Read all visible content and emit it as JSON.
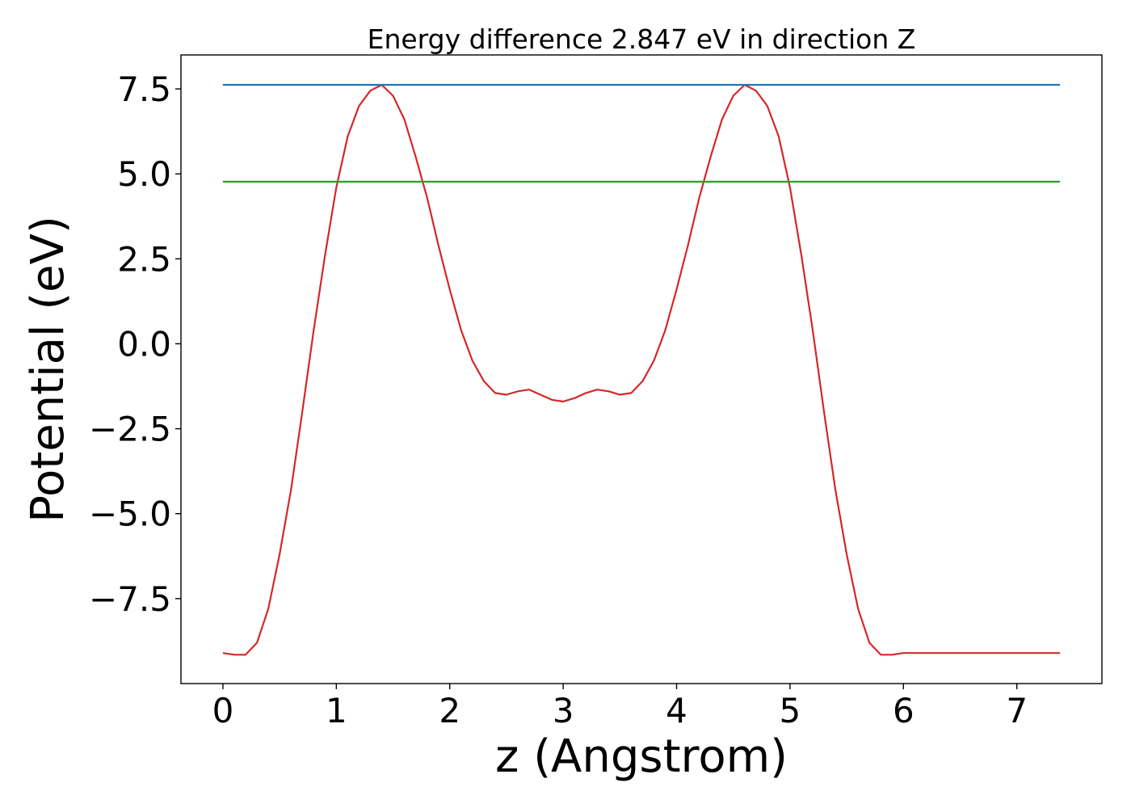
{
  "chart_data": {
    "type": "line",
    "title": "Energy difference 2.847 eV in direction Z",
    "xlabel": "z (Angstrom)",
    "ylabel": "Potential (eV)",
    "xlim": [
      -0.37,
      7.75
    ],
    "ylim": [
      -10.0,
      8.5
    ],
    "xticks": [
      0,
      1,
      2,
      3,
      4,
      5,
      6,
      7
    ],
    "xtick_labels": [
      "0",
      "1",
      "2",
      "3",
      "4",
      "5",
      "6",
      "7"
    ],
    "yticks": [
      7.5,
      5.0,
      2.5,
      0.0,
      -2.5,
      -5.0,
      -7.5
    ],
    "ytick_labels": [
      "7.5",
      "5.0",
      "2.5",
      "0.0",
      "−2.5",
      "−5.0",
      "−7.5"
    ],
    "grid": false,
    "legend": "none",
    "series": [
      {
        "color": "#d62728",
        "x": [
          0.0,
          0.1,
          0.2,
          0.3,
          0.4,
          0.5,
          0.6,
          0.7,
          0.8,
          0.9,
          1.0,
          1.1,
          1.2,
          1.3,
          1.4,
          1.5,
          1.6,
          1.7,
          1.8,
          1.9,
          2.0,
          2.1,
          2.2,
          2.3,
          2.4,
          2.5,
          2.6,
          2.7,
          2.8,
          2.9,
          3.0,
          3.1,
          3.2,
          3.3,
          3.4,
          3.5,
          3.6,
          3.7,
          3.8,
          3.9,
          4.0,
          4.1,
          4.2,
          4.3,
          4.4,
          4.5,
          4.6,
          4.7,
          4.8,
          4.9,
          5.0,
          5.1,
          5.2,
          5.3,
          5.4,
          5.5,
          5.6,
          5.7,
          5.8,
          5.9,
          6.0,
          6.1,
          6.2,
          6.3,
          6.4,
          6.5,
          6.6,
          6.7,
          6.8,
          6.9,
          7.0,
          7.1,
          7.2,
          7.3,
          7.38
        ],
        "y": [
          -9.1,
          -9.15,
          -9.15,
          -8.8,
          -7.8,
          -6.2,
          -4.3,
          -2.0,
          0.4,
          2.6,
          4.6,
          6.1,
          7.0,
          7.45,
          7.62,
          7.3,
          6.6,
          5.5,
          4.3,
          2.9,
          1.6,
          0.4,
          -0.5,
          -1.1,
          -1.45,
          -1.5,
          -1.4,
          -1.35,
          -1.5,
          -1.65,
          -1.7,
          -1.6,
          -1.45,
          -1.35,
          -1.4,
          -1.5,
          -1.45,
          -1.1,
          -0.5,
          0.4,
          1.6,
          2.9,
          4.3,
          5.5,
          6.6,
          7.3,
          7.62,
          7.45,
          7.0,
          6.1,
          4.6,
          2.6,
          0.4,
          -2.0,
          -4.3,
          -6.2,
          -7.8,
          -8.8,
          -9.15,
          -9.15,
          -9.1,
          -9.1,
          -9.1,
          -9.1,
          -9.1,
          -9.1,
          -9.1,
          -9.1,
          -9.1,
          -9.1,
          -9.1,
          -9.1,
          -9.1,
          -9.1,
          -9.1
        ]
      },
      {
        "color": "#1f77b4",
        "x": [
          0.0,
          7.38
        ],
        "y": [
          7.62,
          7.62
        ]
      },
      {
        "color": "#2ca02c",
        "x": [
          0.0,
          7.38
        ],
        "y": [
          4.77,
          4.77
        ]
      }
    ]
  }
}
